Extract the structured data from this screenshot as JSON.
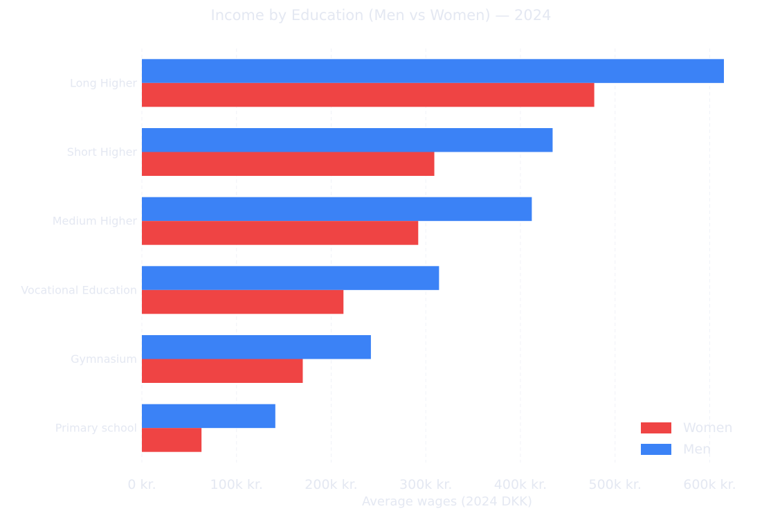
{
  "chart_data": {
    "type": "bar",
    "orientation": "horizontal",
    "title": "Income by Education (Men vs Women) — 2024",
    "xlabel": "Average wages (2024 DKK)",
    "ylabel": "",
    "categories": [
      "Primary school",
      "Gymnasium",
      "Vocational Education",
      "Medium Higher",
      "Short Higher",
      "Long Higher"
    ],
    "series": [
      {
        "name": "Women",
        "color": "#ef4444",
        "values": [
          63000,
          170000,
          213000,
          292000,
          309000,
          478000
        ]
      },
      {
        "name": "Men",
        "color": "#3b82f6",
        "values": [
          141000,
          242000,
          314000,
          412000,
          434000,
          615000
        ]
      }
    ],
    "xlim": [
      0,
      645000
    ],
    "xticks": [
      0,
      100000,
      200000,
      300000,
      400000,
      500000,
      600000
    ],
    "xtick_labels": [
      "0 kr.",
      "100k kr.",
      "200k kr.",
      "300k kr.",
      "400k kr.",
      "500k kr.",
      "600k kr."
    ],
    "grid": "vertical dashed",
    "legend_position": "bottom-right"
  }
}
